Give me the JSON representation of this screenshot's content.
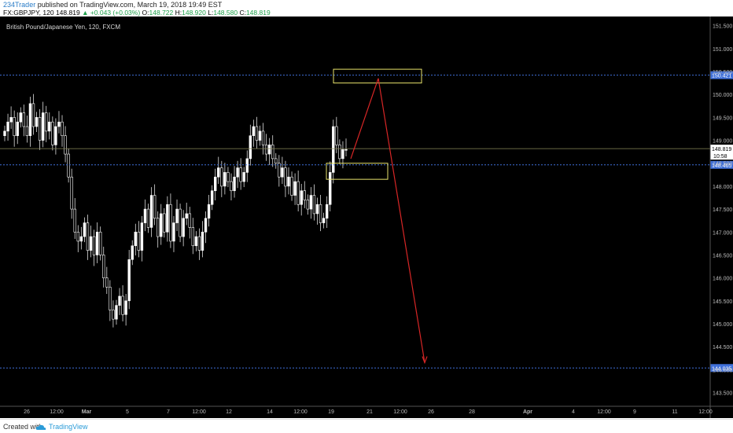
{
  "header": {
    "author": "234Trader",
    "published_text": "published on TradingView.com, March 19, 2018 19:49 EST",
    "symbol": "FX:GBPJPY, 120",
    "last": "148.819",
    "change": "▲ +0.043 (+0.03%)",
    "o_label": "O:",
    "o_value": "148.722",
    "h_label": "H:",
    "h_value": "148.920",
    "l_label": "L:",
    "l_value": "148.580",
    "c_label": "C:",
    "c_value": "148.819"
  },
  "instrument_label": "British Pound/Japanese Yen, 120, FXCM",
  "footer": {
    "created_with": "Created with",
    "brand": "TradingView"
  },
  "colors": {
    "background": "#000000",
    "candle_up": "#ffffff",
    "candle_down": "#ffffff",
    "level_line": "#3f6fd8",
    "zone_box": "#e7e26b",
    "arrow": "#d82626",
    "price_label_bg": "#3f6fd8",
    "current_price_bg": "#ffffff"
  },
  "chart_data": {
    "type": "candlestick",
    "ylim": [
      143.2,
      151.7
    ],
    "y_ticks": [
      "151.500",
      "151.000",
      "150.500",
      "150.000",
      "149.500",
      "149.000",
      "148.500",
      "148.000",
      "147.500",
      "147.000",
      "146.500",
      "146.000",
      "145.500",
      "145.000",
      "144.500",
      "144.000",
      "143.500"
    ],
    "y_tick_values": [
      151.5,
      151.0,
      150.5,
      150.0,
      149.5,
      149.0,
      148.5,
      148.0,
      147.5,
      147.0,
      146.5,
      146.0,
      145.5,
      145.0,
      144.5,
      144.0,
      143.5
    ],
    "x_ticks": [
      "26",
      "12:00",
      "Mar",
      "5",
      "7",
      "12:00",
      "12",
      "14",
      "12:00",
      "19",
      "21",
      "12:00",
      "26",
      "28",
      "Apr",
      "4",
      "12:00",
      "9",
      "11",
      "12:00"
    ],
    "x_tick_bold": [
      "Mar",
      "Apr"
    ],
    "levels": [
      {
        "label": "150.421",
        "value": 150.421
      },
      {
        "label": "148.465",
        "value": 148.465
      },
      {
        "label": "144.035",
        "value": 144.035
      }
    ],
    "current_price": {
      "label": "148.819",
      "value": 148.819,
      "countdown": "10:58"
    },
    "price_path_closes": [
      149.2,
      149.4,
      149.5,
      149.1,
      149.4,
      149.6,
      149.3,
      149.1,
      149.8,
      149.3,
      149.5,
      149.0,
      149.6,
      149.2,
      149.4,
      148.9,
      149.3,
      149.4,
      149.1,
      148.7,
      148.2,
      147.5,
      147.0,
      146.8,
      146.9,
      147.2,
      146.6,
      146.9,
      146.5,
      147.0,
      146.5,
      146.0,
      145.8,
      145.3,
      145.1,
      145.4,
      145.6,
      145.2,
      145.5,
      146.4,
      146.7,
      147.0,
      146.6,
      147.2,
      147.5,
      147.1,
      147.8,
      147.3,
      146.9,
      147.4,
      147.0,
      147.6,
      146.8,
      147.2,
      147.5,
      146.9,
      147.3,
      147.4,
      147.1,
      146.7,
      146.9,
      146.6,
      147.0,
      147.3,
      147.6,
      147.9,
      148.2,
      148.4,
      148.0,
      148.3,
      148.1,
      147.9,
      148.2,
      148.4,
      148.1,
      148.3,
      148.6,
      149.1,
      149.3,
      149.0,
      149.2,
      148.9,
      148.7,
      148.9,
      148.6,
      148.5,
      148.2,
      148.4,
      148.0,
      148.2,
      147.8,
      148.1,
      147.6,
      147.9,
      147.7,
      147.5,
      147.8,
      147.4,
      147.6,
      147.2,
      147.3,
      147.6,
      148.3,
      149.3,
      148.9,
      148.6,
      148.8,
      148.8
    ]
  },
  "annotations": {
    "upper_zone": {
      "price_top": 150.55,
      "price_bottom": 150.25
    },
    "lower_zone": {
      "price_top": 148.5,
      "price_bottom": 148.15
    },
    "arrow_path": [
      {
        "x_date": "20",
        "price": 148.6
      },
      {
        "x_date": "21",
        "price": 150.35
      },
      {
        "x_date": "25",
        "price": 144.15
      }
    ]
  }
}
